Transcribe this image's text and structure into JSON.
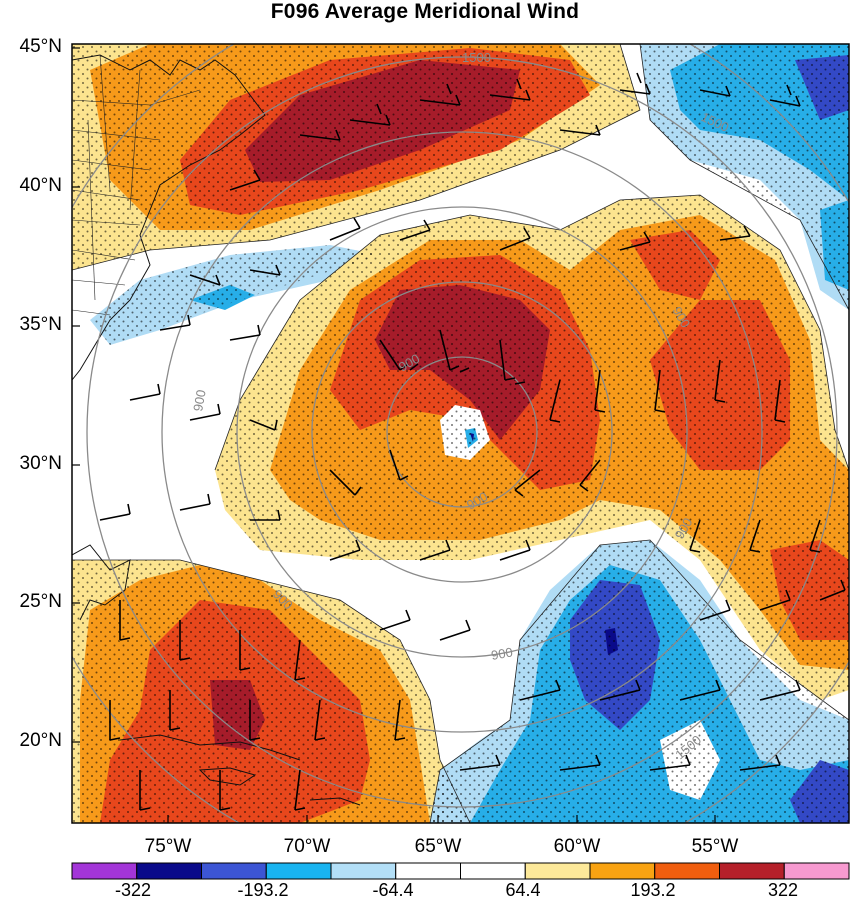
{
  "title": "F096 Average Meridional Wind",
  "latitude_labels": [
    "45°N",
    "40°N",
    "35°N",
    "30°N",
    "25°N",
    "20°N"
  ],
  "longitude_labels": [
    "75°W",
    "70°W",
    "65°W",
    "60°W",
    "55°W"
  ],
  "contour_labels": [
    "900",
    "900",
    "900",
    "900",
    "900",
    "900",
    "900",
    "1500",
    "1500",
    "1500"
  ],
  "colorbar": {
    "colors": [
      "#a335d8",
      "#0a0a8a",
      "#3c55d4",
      "#19b4f0",
      "#b3dff7",
      "#ffffff",
      "#ffffff",
      "#fde99a",
      "#f9a312",
      "#f05e0f",
      "#b5202a",
      "#f79ad0"
    ],
    "tick_labels": [
      "-322",
      "-193.2",
      "-64.4",
      "64.4",
      "193.2",
      "322"
    ]
  },
  "colors": {
    "dark_red": "#a61c2a",
    "red": "#e8471c",
    "orange": "#f79a1a",
    "yellow": "#fce48f",
    "light_blue": "#b0dcf5",
    "blue": "#27aee8",
    "dark_blue": "#3349c6",
    "contour_gray": "#8a8a8a"
  }
}
